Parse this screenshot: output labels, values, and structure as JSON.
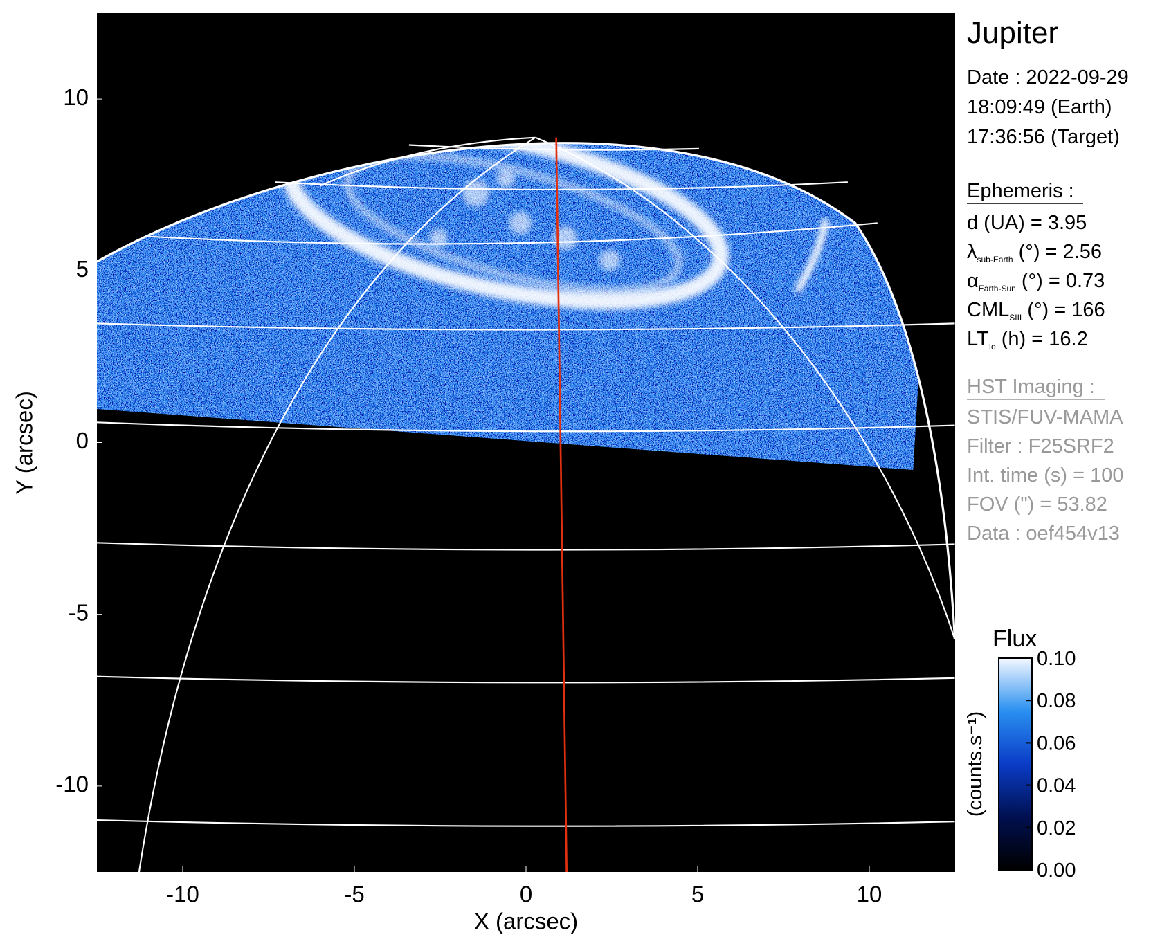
{
  "chart_data": {
    "type": "image",
    "title": "Jupiter",
    "x_label": "X (arcsec)",
    "y_label": "Y (arcsec)",
    "xlim": [
      -12.5,
      12.5
    ],
    "ylim": [
      -12.5,
      12.5
    ],
    "xticks": [
      -10,
      -5,
      0,
      5,
      10
    ],
    "yticks": [
      -10,
      -5,
      0,
      5,
      10
    ],
    "date_lines": [
      "Date : 2022-09-29",
      "18:09:49 (Earth)",
      "17:36:56 (Target)"
    ],
    "ephemeris_title": "Ephemeris :",
    "ephemeris": [
      {
        "text": "d (UA)    = 3.95"
      },
      {
        "symbol": "λ",
        "subscript": "sub-Earth",
        "text": " (°) = 2.56"
      },
      {
        "symbol": "α",
        "subscript": "Earth-Sun",
        "text": " (°) = 0.73"
      },
      {
        "symbol": "CML",
        "subscript": "SIII",
        "text": " (°) = 166"
      },
      {
        "symbol": "LT",
        "subscript": "Io",
        "text": " (h) = 16.2"
      }
    ],
    "imaging_title": "HST Imaging :",
    "imaging": [
      "STIS/FUV-MAMA",
      "Filter : F25SRF2",
      "Int. time (s) = 100",
      "FOV (\") = 53.82",
      "Data : oef454v13"
    ],
    "colorbar": {
      "title": "Flux",
      "label": "(counts.s⁻¹)",
      "clim": [
        0,
        0.1
      ],
      "ticks": [
        {
          "value": 0,
          "label": "0.00"
        },
        {
          "value": 0.02,
          "label": "0.02"
        },
        {
          "value": 0.04,
          "label": "0.04"
        },
        {
          "value": 0.06,
          "label": "0.06"
        },
        {
          "value": 0.08,
          "label": "0.08"
        },
        {
          "value": 0.1,
          "label": "0.10"
        }
      ]
    }
  }
}
